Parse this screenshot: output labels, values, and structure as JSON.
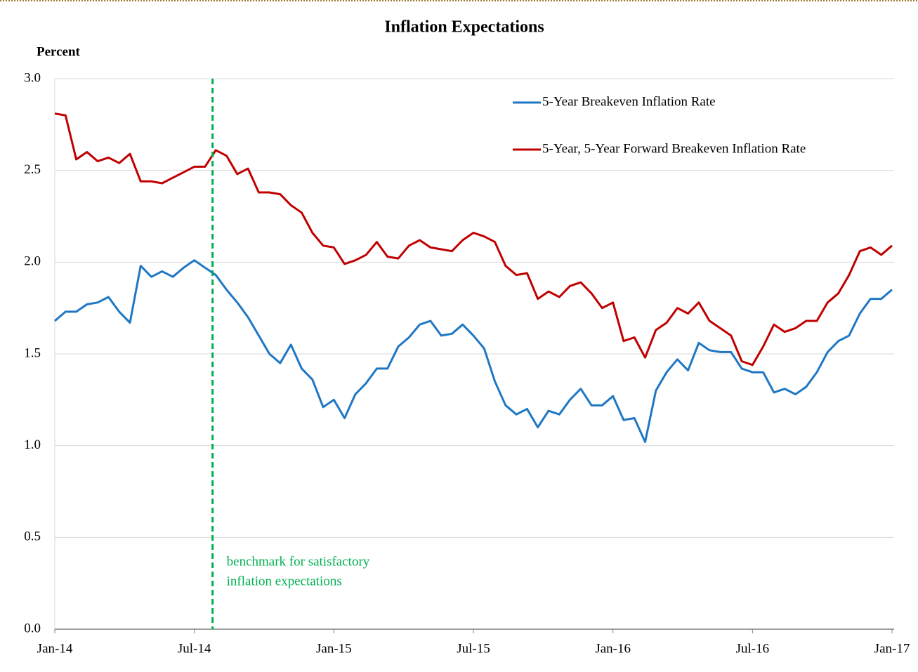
{
  "chart_data": {
    "type": "line",
    "title": "Inflation Expectations",
    "y_label": "Percent",
    "categories": [
      "Jan-14",
      null,
      null,
      null,
      null,
      null,
      null,
      null,
      null,
      null,
      null,
      null,
      null,
      "Jul-14",
      null,
      null,
      null,
      null,
      null,
      null,
      null,
      null,
      null,
      null,
      null,
      null,
      "Jan-15",
      null,
      null,
      null,
      null,
      null,
      null,
      null,
      null,
      null,
      null,
      null,
      null,
      "Jul-15",
      null,
      null,
      null,
      null,
      null,
      null,
      null,
      null,
      null,
      null,
      null,
      null,
      "Jan-16",
      null,
      null,
      null,
      null,
      null,
      null,
      null,
      null,
      null,
      null,
      null,
      null,
      "Jul-16",
      null,
      null,
      null,
      null,
      null,
      null,
      null,
      null,
      null,
      null,
      null,
      null,
      "Jan-17"
    ],
    "series": [
      {
        "name": "5-Year Breakeven Inflation Rate",
        "color": "#1f77c4",
        "values": [
          1.68,
          1.73,
          1.73,
          1.77,
          1.78,
          1.81,
          1.73,
          1.67,
          1.98,
          1.92,
          1.95,
          1.92,
          1.97,
          2.01,
          1.97,
          1.93,
          1.85,
          1.78,
          1.7,
          1.6,
          1.5,
          1.45,
          1.55,
          1.42,
          1.36,
          1.21,
          1.25,
          1.15,
          1.28,
          1.34,
          1.42,
          1.42,
          1.54,
          1.59,
          1.66,
          1.68,
          1.6,
          1.61,
          1.66,
          1.6,
          1.53,
          1.35,
          1.22,
          1.17,
          1.2,
          1.1,
          1.19,
          1.17,
          1.25,
          1.31,
          1.22,
          1.22,
          1.27,
          1.14,
          1.15,
          1.02,
          1.3,
          1.4,
          1.47,
          1.41,
          1.56,
          1.52,
          1.51,
          1.51,
          1.42,
          1.4,
          1.4,
          1.29,
          1.31,
          1.28,
          1.32,
          1.4,
          1.51,
          1.57,
          1.6,
          1.72,
          1.8,
          1.8,
          1.85
        ]
      },
      {
        "name": "5-Year, 5-Year Forward Breakeven Inflation Rate",
        "color": "#c00000",
        "values": [
          2.81,
          2.8,
          2.56,
          2.6,
          2.55,
          2.57,
          2.54,
          2.59,
          2.44,
          2.44,
          2.43,
          2.46,
          2.49,
          2.52,
          2.52,
          2.61,
          2.58,
          2.48,
          2.51,
          2.38,
          2.38,
          2.37,
          2.31,
          2.27,
          2.16,
          2.09,
          2.08,
          1.99,
          2.01,
          2.04,
          2.11,
          2.03,
          2.02,
          2.09,
          2.12,
          2.08,
          2.07,
          2.06,
          2.12,
          2.16,
          2.14,
          2.11,
          1.98,
          1.93,
          1.94,
          1.8,
          1.84,
          1.81,
          1.87,
          1.89,
          1.83,
          1.75,
          1.78,
          1.57,
          1.59,
          1.48,
          1.63,
          1.67,
          1.75,
          1.72,
          1.78,
          1.68,
          1.64,
          1.6,
          1.46,
          1.44,
          1.54,
          1.66,
          1.62,
          1.64,
          1.68,
          1.68,
          1.78,
          1.83,
          1.93,
          2.06,
          2.08,
          2.04,
          2.09
        ]
      }
    ],
    "ylim": [
      0,
      3
    ],
    "yticks": [
      {
        "value": 0,
        "label": "0.0"
      },
      0.5,
      {
        "value": 1,
        "label": "1.0"
      },
      1.5,
      {
        "value": 2,
        "label": "2.0"
      },
      2.5,
      {
        "value": 3,
        "label": "3.0"
      }
    ],
    "grid": true,
    "legend": "upper right",
    "vline": {
      "x": 14.7,
      "color": "#00b050",
      "lines": [
        "benchmark for satisfactory",
        "inflation expectations"
      ]
    }
  }
}
